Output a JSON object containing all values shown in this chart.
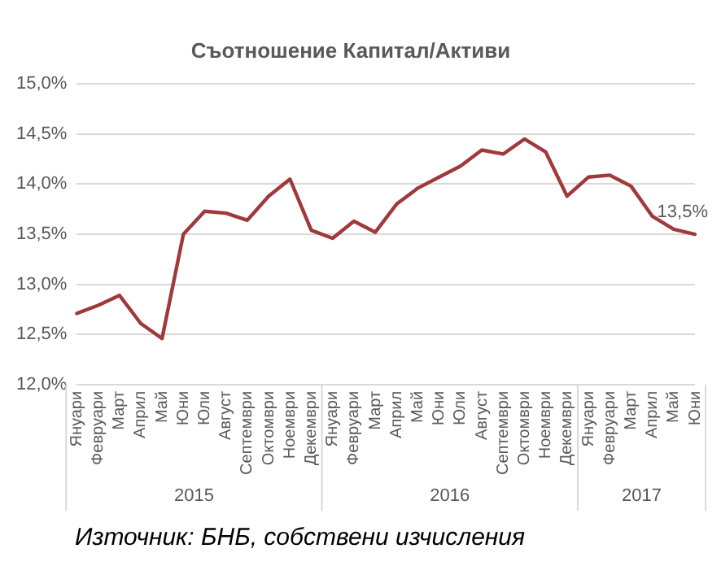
{
  "chart_data": {
    "type": "line",
    "title": "Съотношение Капитал/Активи",
    "categories": [
      "Януари",
      "Февруари",
      "Март",
      "Април",
      "Май",
      "Юни",
      "Юли",
      "Август",
      "Септември",
      "Октомври",
      "Ноември",
      "Декември",
      "Януари",
      "Февруари",
      "Март",
      "Април",
      "Май",
      "Юни",
      "Юли",
      "Август",
      "Септември",
      "Октомври",
      "Ноември",
      "Декември",
      "Януари",
      "Февруари",
      "Март",
      "Април",
      "Май",
      "Юни"
    ],
    "series": [
      {
        "color": "#a0393b",
        "values": [
          12.71,
          12.79,
          12.89,
          12.61,
          12.46,
          13.5,
          13.73,
          13.71,
          13.64,
          13.88,
          14.05,
          13.54,
          13.46,
          13.63,
          13.52,
          13.8,
          13.96,
          14.07,
          14.18,
          14.34,
          14.3,
          14.45,
          14.32,
          13.88,
          14.07,
          14.09,
          13.98,
          13.68,
          13.55,
          13.5
        ],
        "value_labels": [
          null,
          null,
          null,
          null,
          null,
          null,
          null,
          null,
          null,
          null,
          null,
          null,
          null,
          null,
          null,
          null,
          null,
          null,
          null,
          null,
          null,
          null,
          null,
          null,
          null,
          null,
          null,
          null,
          null,
          "13,5%"
        ]
      }
    ],
    "ylim": [
      12,
      15
    ],
    "yticks": [
      {
        "value": 12,
        "label": "12,0%"
      },
      {
        "value": 12.5,
        "label": "12,5%"
      },
      {
        "value": 13,
        "label": "13,0%"
      },
      {
        "value": 13.5,
        "label": "13,5%"
      },
      {
        "value": 14,
        "label": "14,0%"
      },
      {
        "value": 14.5,
        "label": "14,5%"
      },
      {
        "value": 15,
        "label": "15,0%"
      }
    ],
    "grid": "y",
    "legend": false,
    "marker": "none",
    "line_style": "solid",
    "annotations": [
      "2015",
      "2016",
      "2017",
      "Източник: БНБ, собствени изчисления"
    ]
  }
}
